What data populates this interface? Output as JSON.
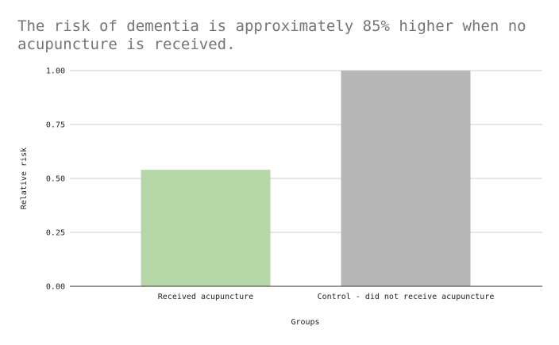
{
  "chart_data": {
    "type": "bar",
    "title": "The risk of dementia is approximately 85% higher when no acupuncture is received.",
    "xlabel": "Groups",
    "ylabel": "Relative risk",
    "categories": [
      "Received acupuncture",
      "Control - did not receive acupuncture"
    ],
    "values": [
      0.54,
      1.0
    ],
    "colors": [
      "#b6d7a8",
      "#b7b7b7"
    ],
    "ylim": [
      0,
      1
    ],
    "yticks": [
      0,
      0.25,
      0.5,
      0.75,
      1.0
    ],
    "ytick_labels": [
      "0.00",
      "0.25",
      "0.50",
      "0.75",
      "1.00"
    ],
    "grid": true,
    "grid_color": "#cccccc",
    "axis_color": "#333333",
    "legend": "none"
  }
}
